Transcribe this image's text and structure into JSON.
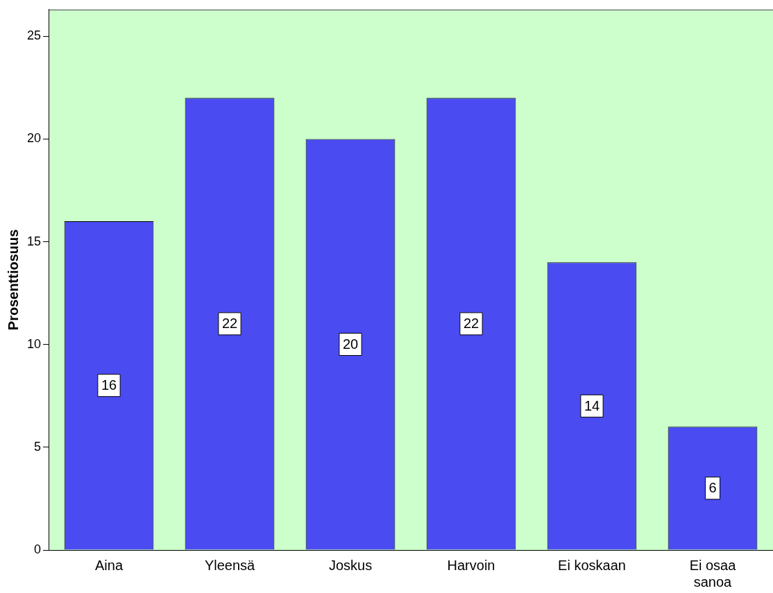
{
  "chart_data": {
    "type": "bar",
    "ylabel": "Prosenttiosuus",
    "categories": [
      "Aina",
      "Yleensä",
      "Joskus",
      "Harvoin",
      "Ei koskaan",
      "Ei osaa sanoa"
    ],
    "values": [
      16,
      22,
      20,
      22,
      14,
      6
    ],
    "color": "#4b4bf2",
    "ylim": [
      0,
      26.3
    ],
    "yticks": [
      0,
      5,
      10,
      15,
      20,
      25
    ],
    "grid": false,
    "legend": false,
    "data_labels": true
  }
}
